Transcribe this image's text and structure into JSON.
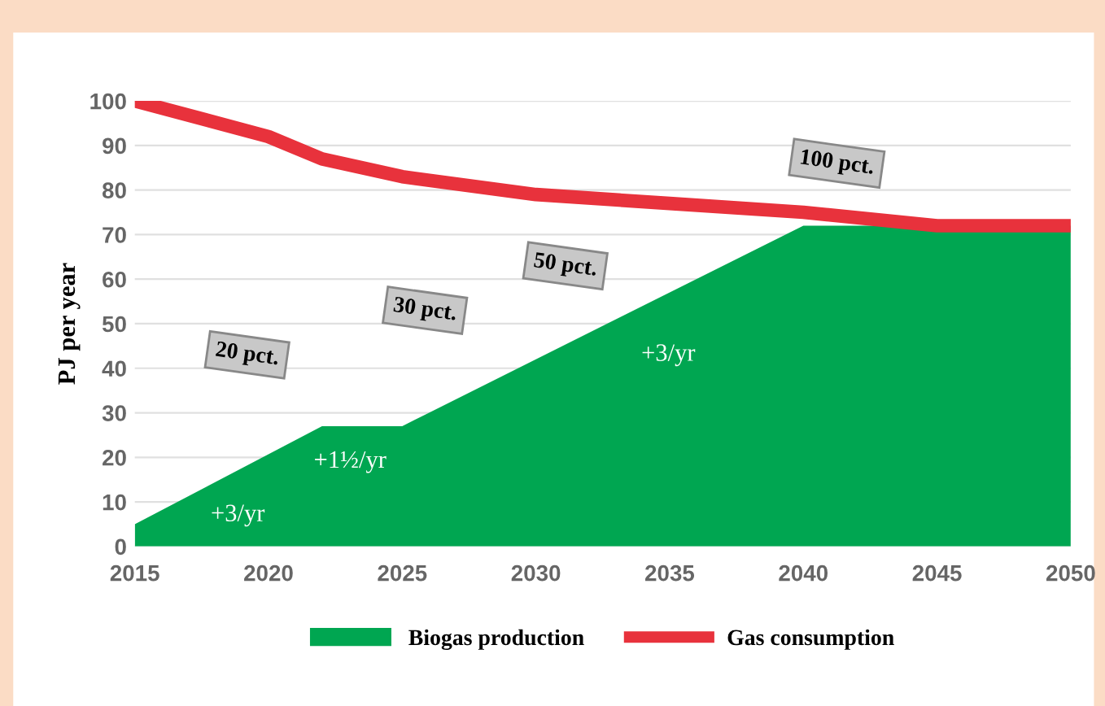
{
  "chart_data": {
    "type": "area",
    "ylabel": "PJ per year",
    "xlim": [
      2015,
      2050
    ],
    "xticks": [
      2015,
      2020,
      2025,
      2030,
      2035,
      2040,
      2045,
      2050
    ],
    "ylim": [
      0,
      100
    ],
    "yticks": [
      0,
      10,
      20,
      30,
      40,
      50,
      60,
      70,
      80,
      90,
      100
    ],
    "grid": "y",
    "legend": "bottom",
    "series": [
      {
        "name": "Biogas production",
        "color": "#00a651",
        "x": [
          2015,
          2022,
          2025,
          2040,
          2050
        ],
        "values": [
          5,
          27,
          27,
          72,
          72
        ]
      },
      {
        "name": "Gas consumption",
        "type": "line",
        "color": "#e8323c",
        "x": [
          2015,
          2020,
          2022,
          2025,
          2030,
          2035,
          2040,
          2045,
          2050
        ],
        "values": [
          100,
          92,
          87,
          83,
          79,
          77,
          75,
          72,
          72
        ]
      }
    ],
    "annotations": [
      "20 pct.",
      "30 pct.",
      "50 pct.",
      "100 pct.",
      "+3/yr",
      "+1½/yr",
      "+3/yr"
    ]
  }
}
